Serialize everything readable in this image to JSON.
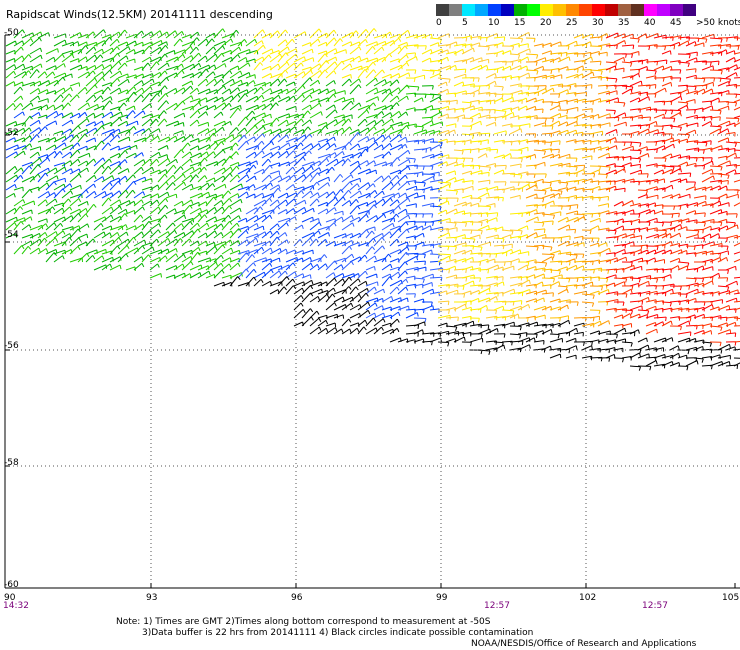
{
  "title": "Rapidscat Winds(12.5KM) 20141111 descending",
  "scale": {
    "colors": [
      "#404040",
      "#7f7f7f",
      "#00e8ff",
      "#00a8ff",
      "#0040ff",
      "#0000c0",
      "#00b000",
      "#00ff00",
      "#ffee00",
      "#ffc000",
      "#ff8800",
      "#ff4400",
      "#ff0000",
      "#c00000",
      "#a06040",
      "#603020",
      "#ff00ff",
      "#c000ff",
      "#8000c0",
      "#400080"
    ],
    "labels": [
      "0",
      "5",
      "10",
      "15",
      "20",
      "25",
      "30",
      "35",
      "40",
      "45",
      ">50 knots"
    ]
  },
  "lat_labels": [
    "-50",
    "-52",
    "-54",
    "-56",
    "-58",
    "-60"
  ],
  "lon_labels": [
    "90",
    "93",
    "96",
    "99",
    "102",
    "105"
  ],
  "time_labels": [
    "14:32",
    "12:57",
    "12:57"
  ],
  "notes": [
    "Note: 1) Times are GMT 2)Times along bottom correspond to measurement at -50S",
    "3)Data buffer is 22 hrs from 20141111 4) Black circles indicate possible contamination",
    "NOAA/NESDIS/Office of Research and Applications"
  ]
}
